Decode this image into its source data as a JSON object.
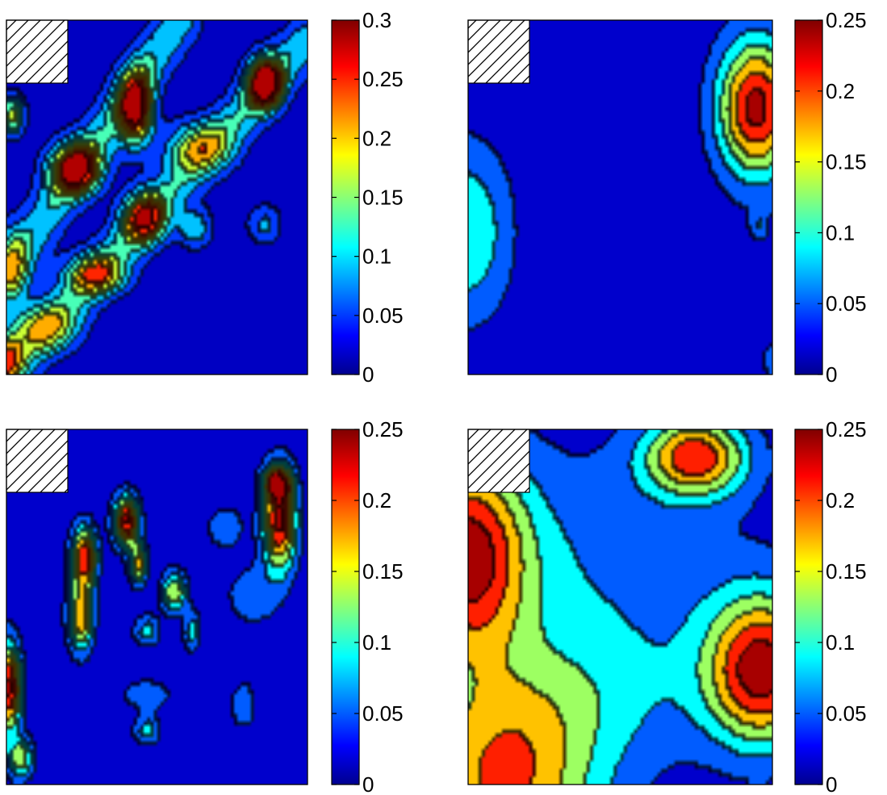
{
  "chart_data": [
    {
      "type": "heatmap",
      "plot": "contour",
      "colormap": "jet",
      "legend_placement": "right",
      "grid": false,
      "masked_corner": "top-left",
      "colorbar": {
        "min": 0,
        "max": 0.3,
        "ticks": [
          0,
          0.05,
          0.1,
          0.15,
          0.2,
          0.25,
          0.3
        ],
        "tick_labels": [
          "0",
          "0.05",
          "0.1",
          "0.15",
          "0.2",
          "0.25",
          "0.3"
        ]
      },
      "levels": [
        0.03,
        0.07,
        0.11,
        0.15,
        0.19,
        0.23,
        0.27
      ],
      "sources": [
        {
          "x": 0.02,
          "y": 0.27,
          "sx": 0.03,
          "sy": 0.04,
          "v": 0.17
        },
        {
          "x": 0.23,
          "y": 0.42,
          "sx": 0.06,
          "sy": 0.05,
          "v": 0.26
        },
        {
          "x": 0.43,
          "y": 0.25,
          "sx": 0.04,
          "sy": 0.07,
          "v": 0.28
        },
        {
          "x": 0.86,
          "y": 0.18,
          "sx": 0.04,
          "sy": 0.05,
          "v": 0.3
        },
        {
          "x": 0.64,
          "y": 0.36,
          "sx": 0.08,
          "sy": 0.05,
          "v": 0.14
        },
        {
          "x": 0.46,
          "y": 0.56,
          "sx": 0.05,
          "sy": 0.05,
          "v": 0.22
        },
        {
          "x": 0.3,
          "y": 0.72,
          "sx": 0.07,
          "sy": 0.04,
          "v": 0.17
        },
        {
          "x": 0.13,
          "y": 0.87,
          "sx": 0.08,
          "sy": 0.05,
          "v": 0.13
        },
        {
          "x": 0.02,
          "y": 0.7,
          "sx": 0.04,
          "sy": 0.07,
          "v": 0.13
        },
        {
          "x": 0.0,
          "y": 0.96,
          "sx": 0.04,
          "sy": 0.05,
          "v": 0.17
        },
        {
          "x": 0.63,
          "y": 0.59,
          "sx": 0.04,
          "sy": 0.04,
          "v": 0.1
        },
        {
          "x": 0.86,
          "y": 0.58,
          "sx": 0.04,
          "sy": 0.04,
          "v": 0.08
        }
      ],
      "ridges": [
        {
          "x1": 0.0,
          "y1": 1.0,
          "x2": 1.0,
          "y2": 0.06,
          "w": 0.05,
          "v": 0.1
        },
        {
          "x1": 0.0,
          "y1": 0.72,
          "x2": 0.58,
          "y2": 0.0,
          "w": 0.05,
          "v": 0.1
        }
      ]
    },
    {
      "type": "heatmap",
      "plot": "contour",
      "colormap": "jet",
      "legend_placement": "right",
      "grid": false,
      "masked_corner": "top-left",
      "colorbar": {
        "min": 0,
        "max": 0.25,
        "ticks": [
          0,
          0.05,
          0.1,
          0.15,
          0.2,
          0.25
        ],
        "tick_labels": [
          "0",
          "0.05",
          "0.1",
          "0.15",
          "0.2",
          "0.25"
        ]
      },
      "levels": [
        0.03,
        0.07,
        0.11,
        0.15,
        0.19,
        0.23
      ],
      "sources": [
        {
          "x": 0.95,
          "y": 0.25,
          "sx": 0.09,
          "sy": 0.14,
          "v": 0.245
        },
        {
          "x": 0.0,
          "y": 0.6,
          "sx": 0.1,
          "sy": 0.17,
          "v": 0.11
        },
        {
          "x": 0.96,
          "y": 0.58,
          "sx": 0.02,
          "sy": 0.03,
          "v": 0.06
        },
        {
          "x": 1.0,
          "y": 0.96,
          "sx": 0.02,
          "sy": 0.03,
          "v": 0.07
        }
      ],
      "ridges": []
    },
    {
      "type": "heatmap",
      "plot": "contour",
      "colormap": "jet",
      "legend_placement": "right",
      "grid": false,
      "masked_corner": "top-left",
      "colorbar": {
        "min": 0,
        "max": 0.25,
        "ticks": [
          0,
          0.05,
          0.1,
          0.15,
          0.2,
          0.25
        ],
        "tick_labels": [
          "0",
          "0.05",
          "0.1",
          "0.15",
          "0.2",
          "0.25"
        ]
      },
      "levels": [
        0.03,
        0.07,
        0.11,
        0.15,
        0.19,
        0.23
      ],
      "sources": [
        {
          "x": 0.4,
          "y": 0.26,
          "sx": 0.03,
          "sy": 0.05,
          "v": 0.24
        },
        {
          "x": 0.26,
          "y": 0.36,
          "sx": 0.03,
          "sy": 0.06,
          "v": 0.22
        },
        {
          "x": 0.25,
          "y": 0.53,
          "sx": 0.03,
          "sy": 0.07,
          "v": 0.18
        },
        {
          "x": 0.44,
          "y": 0.38,
          "sx": 0.02,
          "sy": 0.04,
          "v": 0.17
        },
        {
          "x": 0.56,
          "y": 0.46,
          "sx": 0.03,
          "sy": 0.04,
          "v": 0.15
        },
        {
          "x": 0.91,
          "y": 0.26,
          "sx": 0.04,
          "sy": 0.1,
          "v": 0.24
        },
        {
          "x": 0.9,
          "y": 0.15,
          "sx": 0.03,
          "sy": 0.03,
          "v": 0.2
        },
        {
          "x": 0.01,
          "y": 0.73,
          "sx": 0.03,
          "sy": 0.09,
          "v": 0.24
        },
        {
          "x": 0.05,
          "y": 0.93,
          "sx": 0.03,
          "sy": 0.04,
          "v": 0.14
        },
        {
          "x": 0.47,
          "y": 0.57,
          "sx": 0.03,
          "sy": 0.03,
          "v": 0.09
        },
        {
          "x": 0.62,
          "y": 0.57,
          "sx": 0.02,
          "sy": 0.04,
          "v": 0.09
        },
        {
          "x": 0.47,
          "y": 0.75,
          "sx": 0.06,
          "sy": 0.03,
          "v": 0.06
        },
        {
          "x": 0.47,
          "y": 0.85,
          "sx": 0.03,
          "sy": 0.03,
          "v": 0.09
        },
        {
          "x": 0.79,
          "y": 0.78,
          "sx": 0.03,
          "sy": 0.05,
          "v": 0.06
        },
        {
          "x": 0.82,
          "y": 0.47,
          "sx": 0.06,
          "sy": 0.06,
          "v": 0.06
        },
        {
          "x": 0.73,
          "y": 0.28,
          "sx": 0.04,
          "sy": 0.04,
          "v": 0.07
        }
      ],
      "ridges": []
    },
    {
      "type": "heatmap",
      "plot": "contour",
      "colormap": "jet",
      "legend_placement": "right",
      "grid": false,
      "masked_corner": "top-left",
      "colorbar": {
        "min": 0,
        "max": 0.25,
        "ticks": [
          0,
          0.05,
          0.1,
          0.15,
          0.2,
          0.25
        ],
        "tick_labels": [
          "0",
          "0.05",
          "0.1",
          "0.15",
          "0.2",
          "0.25"
        ]
      },
      "levels": [
        0.03,
        0.07,
        0.11,
        0.15,
        0.19,
        0.23
      ],
      "sources": [
        {
          "x": 0.75,
          "y": 0.08,
          "sx": 0.12,
          "sy": 0.08,
          "v": 0.21
        },
        {
          "x": 0.0,
          "y": 0.36,
          "sx": 0.14,
          "sy": 0.2,
          "v": 0.23
        },
        {
          "x": 0.97,
          "y": 0.68,
          "sx": 0.13,
          "sy": 0.15,
          "v": 0.245
        },
        {
          "x": 0.12,
          "y": 1.0,
          "sx": 0.22,
          "sy": 0.2,
          "v": 0.19
        },
        {
          "x": 0.4,
          "y": 0.4,
          "sx": 0.35,
          "sy": 0.25,
          "v": 0.06
        },
        {
          "x": 0.4,
          "y": 0.75,
          "sx": 0.3,
          "sy": 0.15,
          "v": 0.055
        }
      ],
      "ridges": []
    }
  ]
}
